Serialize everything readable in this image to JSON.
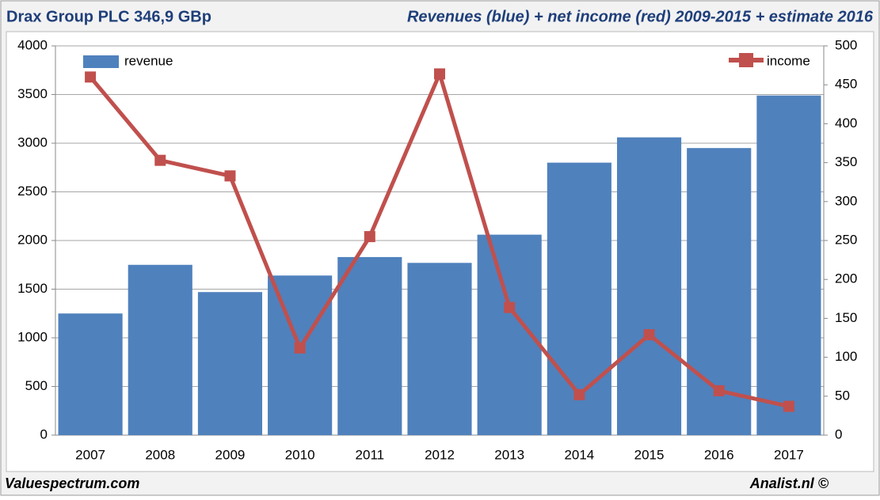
{
  "chart_data": {
    "type": "bar",
    "title": "Drax Group PLC 346,9 GBp",
    "subtitle": "Revenues (blue) + net income (red) 2009-2015 + estimate 2016",
    "annotations": [
      "Valuespectrum.com",
      "Analist.nl ©"
    ],
    "categories": [
      "2007",
      "2008",
      "2009",
      "2010",
      "2011",
      "2012",
      "2013",
      "2014",
      "2015",
      "2016",
      "2017"
    ],
    "series": [
      {
        "name": "revenue",
        "type": "bar",
        "color": "#4f81bd",
        "values": [
          1250,
          1750,
          1470,
          1640,
          1830,
          1770,
          2060,
          2800,
          3060,
          2950,
          3490
        ]
      },
      {
        "name": "income",
        "type": "line",
        "axis": "y2",
        "color": "#c0504d",
        "values": [
          460,
          353,
          333,
          112,
          255,
          464,
          164,
          52,
          129,
          57,
          37
        ]
      }
    ],
    "ylim": [
      0,
      4000
    ],
    "yticks": [
      0,
      500,
      1000,
      1500,
      2000,
      2500,
      3000,
      3500,
      4000
    ],
    "y2lim": [
      0,
      500
    ],
    "y2ticks": [
      0,
      50,
      100,
      150,
      200,
      250,
      300,
      350,
      400,
      450,
      500
    ],
    "grid": true
  }
}
